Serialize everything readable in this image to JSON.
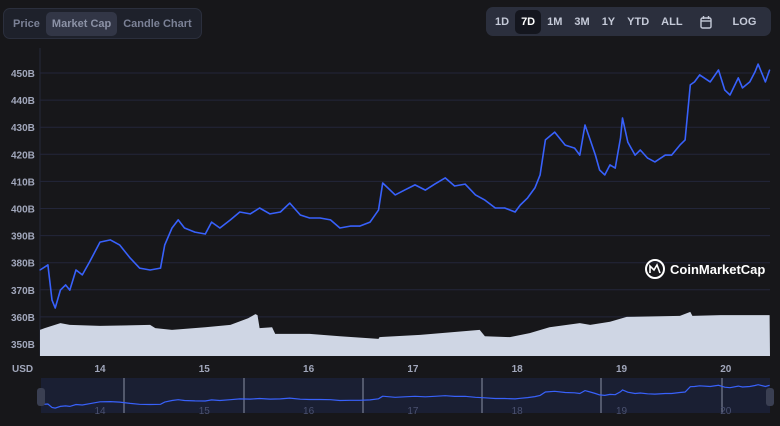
{
  "tabs": [
    {
      "label": "Price",
      "active": false
    },
    {
      "label": "Market Cap",
      "active": true
    },
    {
      "label": "Candle Chart",
      "active": false
    }
  ],
  "ranges": [
    {
      "label": "1D"
    },
    {
      "label": "7D",
      "active": true
    },
    {
      "label": "1M"
    },
    {
      "label": "3M"
    },
    {
      "label": "1Y"
    },
    {
      "label": "YTD"
    },
    {
      "label": "ALL"
    },
    {
      "icon": "calendar-icon"
    },
    {
      "label": "LOG"
    }
  ],
  "watermark": "CoinMarketCap",
  "chart_data": {
    "type": "line",
    "currency_label": "USD",
    "line_color": "#3861fb",
    "volume_color": "#cfd6e4",
    "ylim": [
      345,
      455
    ],
    "xlim": [
      13.42,
      20.42
    ],
    "y_ticks": [
      "350B",
      "360B",
      "370B",
      "380B",
      "390B",
      "400B",
      "410B",
      "420B",
      "430B",
      "440B",
      "450B"
    ],
    "y_tick_values": [
      350,
      360,
      370,
      380,
      390,
      400,
      410,
      420,
      430,
      440,
      450
    ],
    "x_ticks": [
      "14",
      "15",
      "16",
      "17",
      "18",
      "19",
      "20"
    ],
    "x_tick_values": [
      14,
      15,
      16,
      17,
      18,
      19,
      20
    ],
    "grid": true,
    "series": [
      {
        "x": [
          13.42,
          13.5,
          13.54,
          13.57,
          13.62,
          13.67,
          13.71,
          13.77,
          13.83,
          13.9,
          14.0,
          14.1,
          14.19,
          14.29,
          14.38,
          14.48,
          14.58,
          14.62,
          14.69,
          14.75,
          14.81,
          14.91,
          15.01,
          15.07,
          15.15,
          15.25,
          15.34,
          15.44,
          15.53,
          15.63,
          15.73,
          15.82,
          15.92,
          16.01,
          16.11,
          16.21,
          16.3,
          16.4,
          16.49,
          16.59,
          16.67,
          16.71,
          16.83,
          16.92,
          17.02,
          17.12,
          17.21,
          17.31,
          17.4,
          17.5,
          17.6,
          17.69,
          17.79,
          17.88,
          17.98,
          18.03,
          18.1,
          18.17,
          18.22,
          18.27,
          18.36,
          18.46,
          18.55,
          18.6,
          18.65,
          18.7,
          18.75,
          18.79,
          18.84,
          18.89,
          18.94,
          18.99,
          19.01,
          19.06,
          19.13,
          19.18,
          19.25,
          19.32,
          19.42,
          19.48,
          19.56,
          19.61,
          19.66,
          19.7,
          19.75,
          19.85,
          19.93,
          19.99,
          20.04,
          20.12,
          20.16,
          20.23,
          20.28,
          20.31,
          20.38,
          20.42
        ],
        "y": [
          377.3,
          379.2,
          366.2,
          363.3,
          369.9,
          371.8,
          369.9,
          377.3,
          375.5,
          380.3,
          387.6,
          388.4,
          386.5,
          381.7,
          378.0,
          377.3,
          378.0,
          386.5,
          392.8,
          395.8,
          392.8,
          391.3,
          390.6,
          395.0,
          392.8,
          395.8,
          398.7,
          398.0,
          400.2,
          398.0,
          398.7,
          402.0,
          397.6,
          396.5,
          396.5,
          395.8,
          392.8,
          393.5,
          393.5,
          395.0,
          399.4,
          409.4,
          405.0,
          406.8,
          408.7,
          406.8,
          409.0,
          411.3,
          408.3,
          409.0,
          405.0,
          403.1,
          400.2,
          400.2,
          398.7,
          401.3,
          403.9,
          407.6,
          412.4,
          425.3,
          428.2,
          423.4,
          422.3,
          419.7,
          430.8,
          425.3,
          419.7,
          414.2,
          412.4,
          416.1,
          414.9,
          426.0,
          433.4,
          424.5,
          419.7,
          421.6,
          418.6,
          417.2,
          419.7,
          419.7,
          423.4,
          425.3,
          445.6,
          446.7,
          449.3,
          446.7,
          451.1,
          443.7,
          441.9,
          448.2,
          444.5,
          446.7,
          450.4,
          453.3,
          446.7,
          451.1
        ]
      }
    ],
    "volume_relative": {
      "x": [
        13.42,
        13.47,
        13.62,
        13.71,
        14.0,
        14.48,
        14.53,
        14.69,
        15.01,
        15.25,
        15.42,
        15.49,
        15.51,
        15.53,
        15.65,
        15.68,
        16.01,
        16.3,
        16.67,
        16.68,
        17.07,
        17.64,
        17.69,
        17.93,
        18.12,
        18.31,
        18.6,
        18.7,
        18.89,
        19.05,
        19.56,
        19.66,
        19.68,
        19.95,
        20.42
      ],
      "y": [
        0.58,
        0.62,
        0.73,
        0.69,
        0.67,
        0.69,
        0.62,
        0.58,
        0.64,
        0.69,
        0.84,
        0.93,
        0.91,
        0.62,
        0.64,
        0.49,
        0.49,
        0.44,
        0.38,
        0.42,
        0.47,
        0.58,
        0.44,
        0.42,
        0.51,
        0.64,
        0.73,
        0.69,
        0.76,
        0.87,
        0.89,
        0.98,
        0.89,
        0.91,
        0.91
      ]
    }
  }
}
